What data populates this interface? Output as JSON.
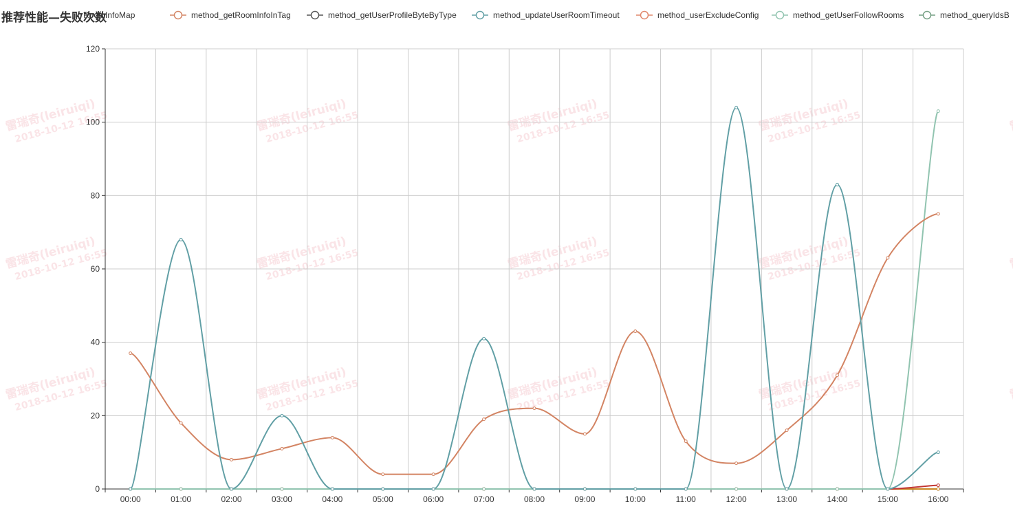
{
  "chart_data": {
    "type": "line",
    "title": "推荐性能—失败次数",
    "categories": [
      "00:00",
      "01:00",
      "02:00",
      "03:00",
      "04:00",
      "05:00",
      "06:00",
      "07:00",
      "08:00",
      "09:00",
      "10:00",
      "11:00",
      "12:00",
      "13:00",
      "14:00",
      "15:00",
      "16:00"
    ],
    "ylim": [
      0,
      120
    ],
    "yticks": [
      0,
      20,
      40,
      60,
      80,
      100,
      120
    ],
    "grid": true,
    "smooth": true,
    "legend_position": "top",
    "visible_partial_legend_label": "RoomInfoMap",
    "series": [
      {
        "name": "method_getRoomInfoInTag",
        "color": "#d38463",
        "values": [
          37,
          18,
          8,
          11,
          14,
          4,
          4,
          19,
          22,
          15,
          43,
          13,
          7,
          16,
          31,
          63,
          75
        ]
      },
      {
        "name": "method_getUserProfileByteByType",
        "color": "#545454",
        "values": [
          0,
          0,
          0,
          0,
          0,
          0,
          0,
          0,
          0,
          0,
          0,
          0,
          0,
          0,
          0,
          0,
          0
        ]
      },
      {
        "name": "method_updateUserRoomTimeout",
        "color": "#619fa5",
        "values": [
          0,
          68,
          0,
          20,
          0,
          0,
          0,
          41,
          0,
          0,
          0,
          0,
          104,
          0,
          83,
          0,
          10
        ]
      },
      {
        "name": "method_userExcludeConfig",
        "color": "#e0876b",
        "values": [
          0,
          0,
          0,
          0,
          0,
          0,
          0,
          0,
          0,
          0,
          0,
          0,
          0,
          0,
          0,
          0,
          0
        ]
      },
      {
        "name": "method_getUserFollowRooms",
        "color": "#91c4b0",
        "values": [
          0,
          0,
          0,
          0,
          0,
          0,
          0,
          0,
          0,
          0,
          0,
          0,
          0,
          0,
          0,
          0,
          103
        ]
      },
      {
        "name": "method_queryIdsB",
        "color": "#749f83",
        "values": [
          0,
          0,
          0,
          0,
          0,
          0,
          0,
          0,
          0,
          0,
          0,
          0,
          0,
          0,
          0,
          0,
          0
        ]
      },
      {
        "name": "",
        "color": "#c23531",
        "values": [
          0,
          0,
          0,
          0,
          0,
          0,
          0,
          0,
          0,
          0,
          0,
          0,
          0,
          0,
          0,
          0,
          1
        ]
      },
      {
        "name": "",
        "color": "#ca8622",
        "values": [
          0,
          0,
          0,
          0,
          0,
          0,
          0,
          0,
          0,
          0,
          0,
          0,
          0,
          0,
          0,
          0,
          0
        ]
      }
    ],
    "watermark": {
      "name": "雷瑞奇(leiruiqi)",
      "date": "2018-10-12 16:55"
    }
  }
}
